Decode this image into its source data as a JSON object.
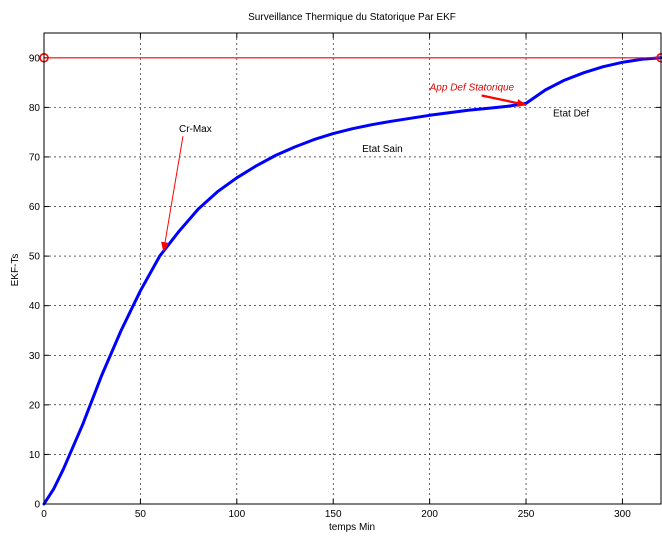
{
  "chart_data": {
    "type": "line",
    "title": "Surveillance Thermique du Statorique Par EKF",
    "xlabel": "temps Min",
    "ylabel": "EKF-Ts",
    "xlim": [
      0,
      320
    ],
    "ylim": [
      0,
      95
    ],
    "xticks": [
      0,
      50,
      100,
      150,
      200,
      250,
      300
    ],
    "yticks": [
      0,
      10,
      20,
      30,
      40,
      50,
      60,
      70,
      80,
      90
    ],
    "grid": true,
    "series": [
      {
        "color": "#0000ff",
        "style": "solid",
        "x": [
          0,
          5,
          10,
          20,
          30,
          40,
          50,
          60,
          70,
          80,
          90,
          100,
          110,
          120,
          130,
          140,
          150,
          160,
          170,
          180,
          190,
          200,
          210,
          220,
          230,
          240,
          250,
          260,
          270,
          280,
          290,
          300,
          310,
          320
        ],
        "y": [
          0,
          3,
          7,
          16,
          26,
          35,
          43,
          50,
          55,
          59.5,
          63,
          65.8,
          68.2,
          70.3,
          72,
          73.5,
          74.7,
          75.7,
          76.5,
          77.2,
          77.8,
          78.4,
          78.9,
          79.4,
          79.8,
          80.2,
          80.8,
          83.5,
          85.5,
          87,
          88.2,
          89.1,
          89.7,
          90
        ]
      },
      {
        "color": "#ff0000",
        "style": "solid",
        "marker_at_ends": "circle",
        "x": [
          0,
          320
        ],
        "y": [
          90,
          90
        ]
      }
    ],
    "annotations": [
      {
        "text": "Cr-Max",
        "color": "#000000",
        "italic": false,
        "arrow": true,
        "arrow_color": "#ff0000",
        "x": 70,
        "y": 75,
        "target_x": 62,
        "target_y": 51
      },
      {
        "text": "Etat Sain",
        "color": "#000000",
        "italic": false,
        "arrow": false,
        "x": 165,
        "y": 71
      },
      {
        "text": "App Def Statorique",
        "color": "#ff0000",
        "italic": true,
        "arrow": true,
        "arrow_color": "#ff0000",
        "x": 200,
        "y": 83.4,
        "target_x": 250,
        "target_y": 80.5
      },
      {
        "text": "Etat Def",
        "color": "#000000",
        "italic": false,
        "arrow": false,
        "x": 264,
        "y": 78.2
      }
    ]
  }
}
